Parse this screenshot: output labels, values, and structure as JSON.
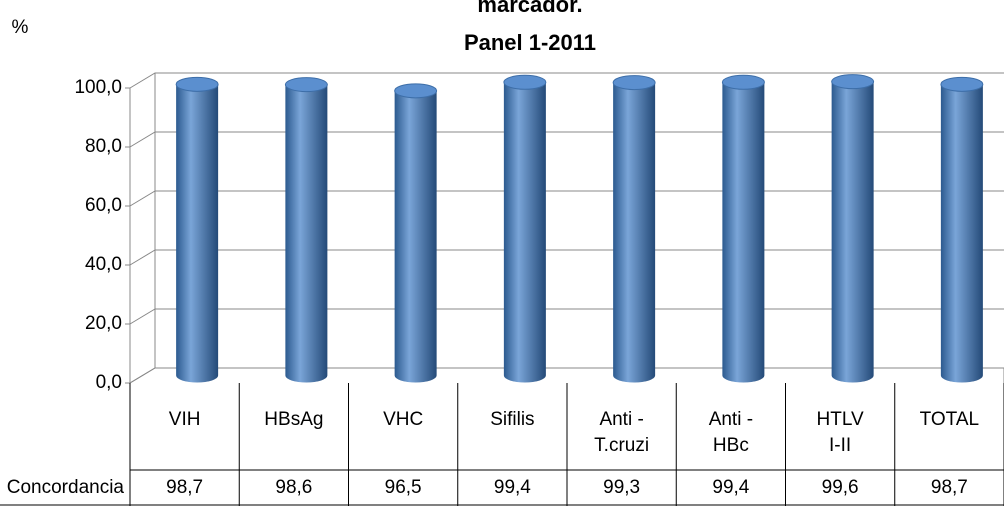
{
  "chart_data": {
    "type": "bar",
    "title": "marcador.",
    "subtitle": "Panel  1-2011",
    "y_label": "%",
    "categories": [
      "VIH",
      "HBsAg",
      "VHC",
      "Sifilis",
      "Anti - T.cruzi",
      "Anti - HBc",
      "HTLV I-II",
      "TOTAL"
    ],
    "series": [
      {
        "name": "Concordancia",
        "color": "#4f81bd",
        "values": [
          98.7,
          98.6,
          96.5,
          99.4,
          99.3,
          99.4,
          99.6,
          98.7
        ],
        "value_labels": [
          "98,7",
          "98,6",
          "96,5",
          "99,4",
          "99,3",
          "99,4",
          "99,6",
          "98,7"
        ]
      }
    ],
    "ylim": [
      0,
      100
    ],
    "yticks": [
      {
        "value": 0,
        "label": "0,0"
      },
      {
        "value": 20,
        "label": "20,0"
      },
      {
        "value": 40,
        "label": "40,0"
      },
      {
        "value": 60,
        "label": "60,0"
      },
      {
        "value": 80,
        "label": "80,0"
      },
      {
        "value": 100,
        "label": "100,0"
      }
    ],
    "grid": true
  }
}
